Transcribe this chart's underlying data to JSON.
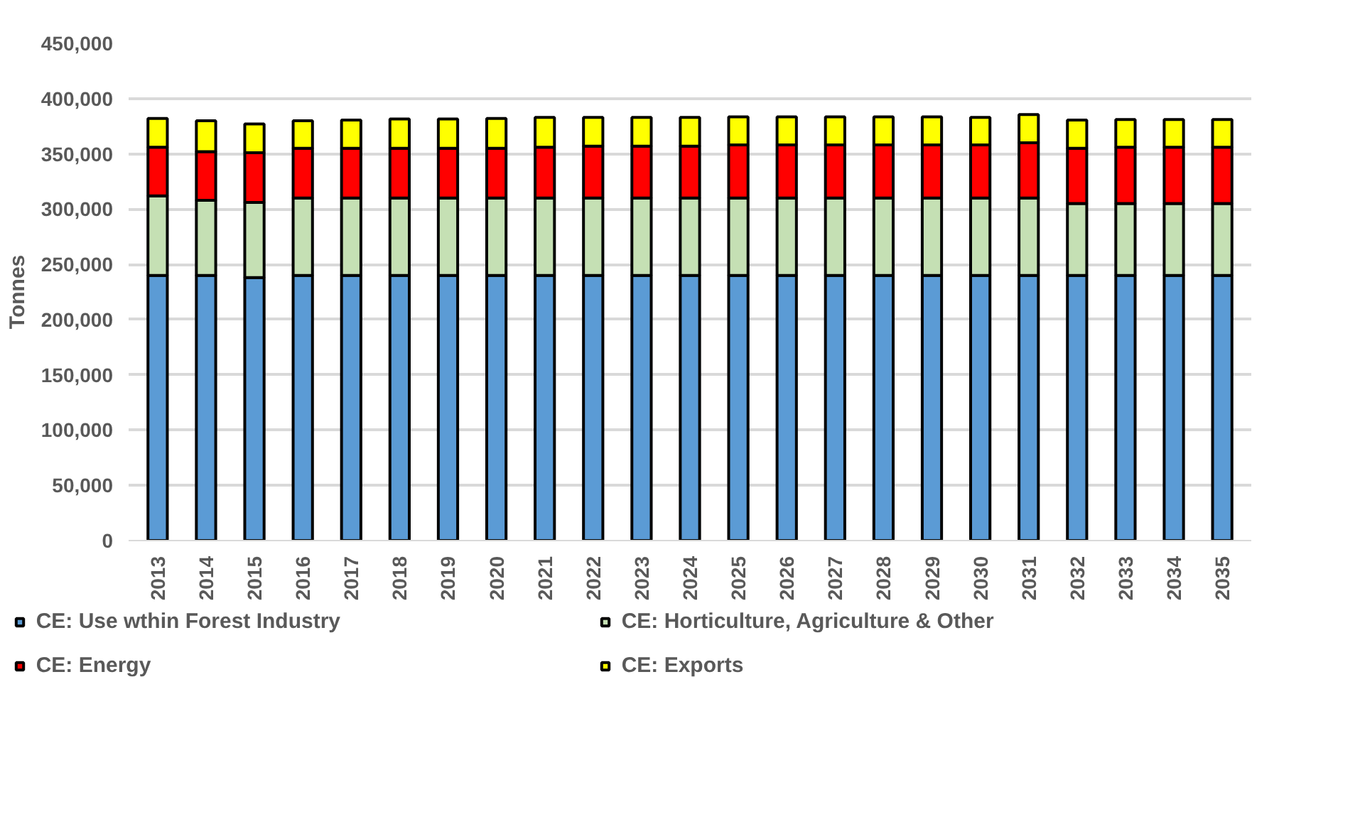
{
  "chart_data": {
    "type": "bar",
    "stacked": true,
    "ylabel": "Tonnes",
    "categories": [
      "2013",
      "2014",
      "2015",
      "2016",
      "2017",
      "2018",
      "2019",
      "2020",
      "2021",
      "2022",
      "2023",
      "2024",
      "2025",
      "2026",
      "2027",
      "2028",
      "2029",
      "2030",
      "2031",
      "2032",
      "2033",
      "2034",
      "2035"
    ],
    "series": [
      {
        "name": "CE: Use wthin Forest Industry",
        "color": "#5b9bd5",
        "values": [
          240000,
          240000,
          238000,
          240000,
          240000,
          240000,
          240000,
          240000,
          240000,
          240000,
          240000,
          240000,
          240000,
          240000,
          240000,
          240000,
          240000,
          240000,
          240000,
          240000,
          240000,
          240000,
          240000
        ]
      },
      {
        "name": "CE: Horticulture, Agriculture & Other",
        "color": "#c5e0b4",
        "values": [
          72000,
          68000,
          68000,
          70000,
          70000,
          70000,
          70000,
          70000,
          70000,
          70000,
          70000,
          70000,
          70000,
          70000,
          70000,
          70000,
          70000,
          70000,
          70000,
          65000,
          65000,
          65000,
          65000
        ]
      },
      {
        "name": "CE: Energy",
        "color": "#ff0000",
        "values": [
          44000,
          44000,
          45000,
          45000,
          45000,
          45000,
          45000,
          45000,
          46000,
          47000,
          47000,
          47000,
          48000,
          48000,
          48000,
          48000,
          48000,
          48000,
          50000,
          50000,
          51000,
          51000,
          51000
        ]
      },
      {
        "name": "CE: Exports",
        "color": "#ffff00",
        "values": [
          26000,
          28000,
          26000,
          25000,
          25500,
          26500,
          26500,
          27000,
          27000,
          26000,
          26000,
          26000,
          25500,
          25500,
          25500,
          25500,
          25500,
          25000,
          25500,
          25500,
          25000,
          25000,
          25000
        ]
      }
    ],
    "ylim": [
      0,
      450000
    ],
    "yticks": [
      {
        "value": 0,
        "label": "0"
      },
      {
        "value": 50000,
        "label": "50,000"
      },
      {
        "value": 100000,
        "label": "100,000"
      },
      {
        "value": 150000,
        "label": "150,000"
      },
      {
        "value": 200000,
        "label": "200,000"
      },
      {
        "value": 250000,
        "label": "250,000"
      },
      {
        "value": 300000,
        "label": "300,000"
      },
      {
        "value": 350000,
        "label": "350,000"
      },
      {
        "value": 400000,
        "label": "400,000"
      },
      {
        "value": 450000,
        "label": "450,000"
      }
    ],
    "grid": "y",
    "legend": "bottom"
  }
}
